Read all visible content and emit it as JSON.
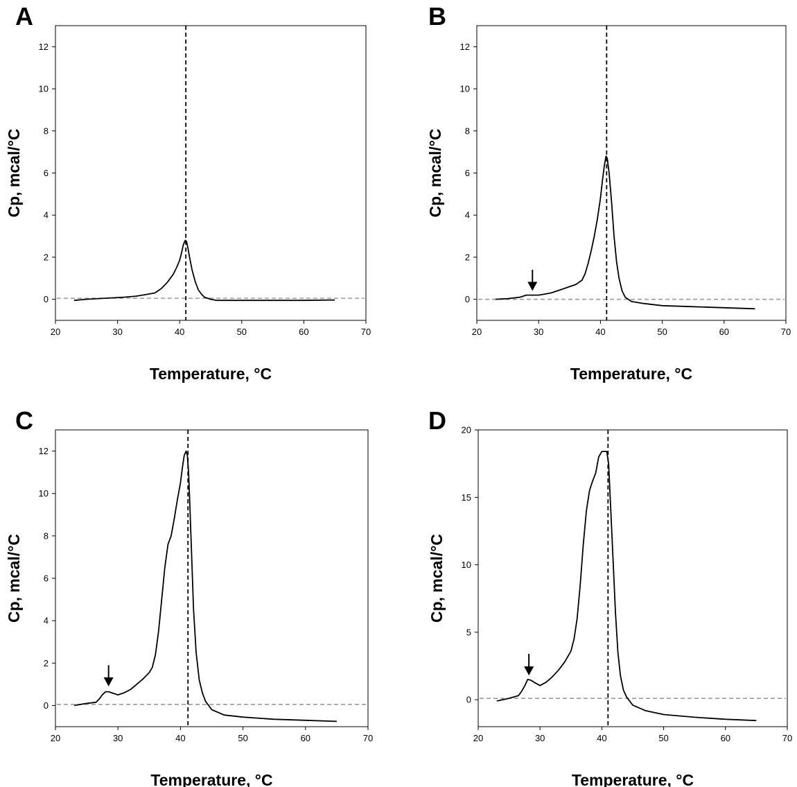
{
  "chart_data": [
    {
      "type": "line",
      "panel_label": "A",
      "xlabel": "Temperature, °C",
      "ylabel": "Cp, mcal/°C",
      "xlim": [
        20,
        70
      ],
      "ylim": [
        -1,
        13
      ],
      "xticks": [
        20,
        30,
        40,
        50,
        60,
        70
      ],
      "yticks": [
        0,
        2,
        4,
        6,
        8,
        10,
        12
      ],
      "reference_lines": {
        "vertical_x": 41,
        "horizontal_y": 0.05
      },
      "arrow": null,
      "series": [
        {
          "x": [
            23,
            25,
            28,
            31,
            33,
            34,
            35,
            36,
            37,
            38,
            38.5,
            39,
            39.5,
            40,
            40.3,
            40.6,
            40.9,
            41.1,
            41.3,
            41.6,
            42,
            42.5,
            43,
            43.5,
            44,
            45,
            46,
            47,
            50,
            52,
            55,
            60,
            65
          ],
          "y": [
            -0.05,
            0,
            0.05,
            0.1,
            0.15,
            0.2,
            0.25,
            0.3,
            0.5,
            0.8,
            1.0,
            1.2,
            1.5,
            1.85,
            2.2,
            2.6,
            2.8,
            2.75,
            2.5,
            2.0,
            1.4,
            0.85,
            0.45,
            0.25,
            0.1,
            0,
            -0.05,
            -0.05,
            -0.05,
            -0.05,
            -0.05,
            -0.05,
            -0.03
          ]
        }
      ]
    },
    {
      "type": "line",
      "panel_label": "B",
      "xlabel": "Temperature, °C",
      "ylabel": "Cp, mcal/°C",
      "xlim": [
        20,
        70
      ],
      "ylim": [
        -1,
        13
      ],
      "xticks": [
        20,
        30,
        40,
        50,
        60,
        70
      ],
      "yticks": [
        0,
        2,
        4,
        6,
        8,
        10,
        12
      ],
      "reference_lines": {
        "vertical_x": 41,
        "horizontal_y": 0
      },
      "arrow": {
        "x": 29,
        "y_top": 1.4,
        "y_tip": 0.4
      },
      "series": [
        {
          "x": [
            23,
            25,
            27,
            28,
            29,
            30,
            31,
            32,
            33,
            34,
            35,
            36,
            37,
            37.5,
            38,
            38.5,
            39,
            39.5,
            40,
            40.3,
            40.6,
            40.9,
            41.1,
            41.4,
            41.8,
            42.2,
            42.6,
            43,
            43.5,
            44,
            45,
            47,
            50,
            55,
            60,
            65
          ],
          "y": [
            0,
            0.03,
            0.1,
            0.2,
            0.2,
            0.2,
            0.25,
            0.3,
            0.4,
            0.5,
            0.6,
            0.7,
            0.9,
            1.2,
            1.7,
            2.3,
            3.0,
            3.8,
            4.8,
            5.6,
            6.3,
            6.8,
            6.7,
            6.0,
            4.6,
            3.0,
            1.8,
            1.0,
            0.4,
            0.1,
            -0.1,
            -0.2,
            -0.3,
            -0.35,
            -0.4,
            -0.45
          ]
        }
      ]
    },
    {
      "type": "line",
      "panel_label": "C",
      "xlabel": "Temperature, °C",
      "ylabel": "Cp, mcal/°C",
      "xlim": [
        20,
        70
      ],
      "ylim": [
        -1,
        13
      ],
      "xticks": [
        20,
        30,
        40,
        50,
        60,
        70
      ],
      "yticks": [
        0,
        2,
        4,
        6,
        8,
        10,
        12
      ],
      "reference_lines": {
        "vertical_x": 41.2,
        "horizontal_y": 0.05
      },
      "arrow": {
        "x": 28.5,
        "y_top": 1.9,
        "y_tip": 0.9
      },
      "series": [
        {
          "x": [
            23,
            25,
            26.5,
            27,
            27.5,
            28,
            28.5,
            29,
            29.5,
            30,
            31,
            32,
            33,
            34,
            35,
            35.5,
            36,
            36.5,
            37,
            37.5,
            38,
            38.5,
            39,
            39.5,
            40,
            40.3,
            40.6,
            40.9,
            41.1,
            41.3,
            41.5,
            41.8,
            42.1,
            42.5,
            43,
            43.5,
            44,
            45,
            47,
            50,
            55,
            60,
            65
          ],
          "y": [
            0,
            0.1,
            0.15,
            0.3,
            0.5,
            0.65,
            0.65,
            0.6,
            0.55,
            0.5,
            0.6,
            0.75,
            1.0,
            1.25,
            1.55,
            1.8,
            2.4,
            3.5,
            5.0,
            6.5,
            7.6,
            8.0,
            8.8,
            9.7,
            10.5,
            11.2,
            11.8,
            12.0,
            11.8,
            11.0,
            9.5,
            7.0,
            4.5,
            2.5,
            1.2,
            0.6,
            0.2,
            -0.2,
            -0.45,
            -0.55,
            -0.65,
            -0.7,
            -0.75
          ]
        }
      ]
    },
    {
      "type": "line",
      "panel_label": "D",
      "xlabel": "Temperature, °C",
      "ylabel": "Cp, mcal/°C",
      "xlim": [
        20,
        70
      ],
      "ylim": [
        -2,
        20
      ],
      "xticks": [
        20,
        30,
        40,
        50,
        60,
        70
      ],
      "yticks": [
        0,
        5,
        10,
        15,
        20
      ],
      "reference_lines": {
        "vertical_x": 41,
        "horizontal_y": 0.1
      },
      "arrow": {
        "x": 28.2,
        "y_top": 3.4,
        "y_tip": 1.8
      },
      "series": [
        {
          "x": [
            23,
            25,
            26.5,
            27,
            27.5,
            28,
            28.5,
            29,
            30,
            31,
            32,
            33,
            34,
            35,
            35.5,
            36,
            36.5,
            37,
            37.5,
            38,
            38.5,
            39,
            39.5,
            40,
            40.6,
            40.8,
            41.1,
            41.4,
            41.8,
            42.2,
            42.6,
            43,
            43.5,
            44,
            45,
            47,
            50,
            55,
            60,
            65
          ],
          "y": [
            -0.1,
            0.1,
            0.3,
            0.6,
            1.0,
            1.5,
            1.45,
            1.3,
            1.05,
            1.3,
            1.7,
            2.2,
            2.8,
            3.6,
            4.5,
            6.0,
            8.5,
            11.5,
            14.0,
            15.5,
            16.2,
            16.8,
            18.0,
            18.4,
            18.4,
            18.4,
            17.5,
            14.5,
            10.5,
            6.5,
            3.5,
            1.8,
            0.7,
            0.2,
            -0.4,
            -0.8,
            -1.1,
            -1.3,
            -1.45,
            -1.55
          ]
        }
      ]
    }
  ]
}
